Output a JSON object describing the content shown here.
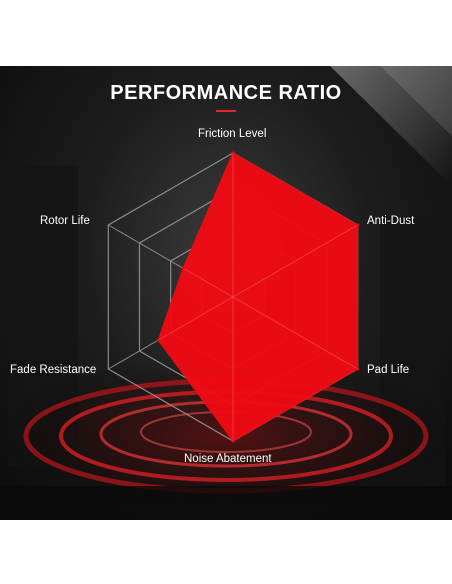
{
  "chart_data": {
    "type": "radar",
    "title": "PERFORMANCE RATIO",
    "axes": [
      "Friction Level",
      "Anti-Dust",
      "Pad Life",
      "Noise Abatement",
      "Fade Resistance",
      "Rotor Life"
    ],
    "values": [
      1.0,
      1.0,
      1.0,
      1.0,
      0.6,
      0.4
    ],
    "rlim": [
      0,
      1
    ],
    "grid_levels": 4,
    "colors": {
      "fill": "#f00a14",
      "grid": "#8a8a8a",
      "accent": "#e3262b"
    }
  }
}
